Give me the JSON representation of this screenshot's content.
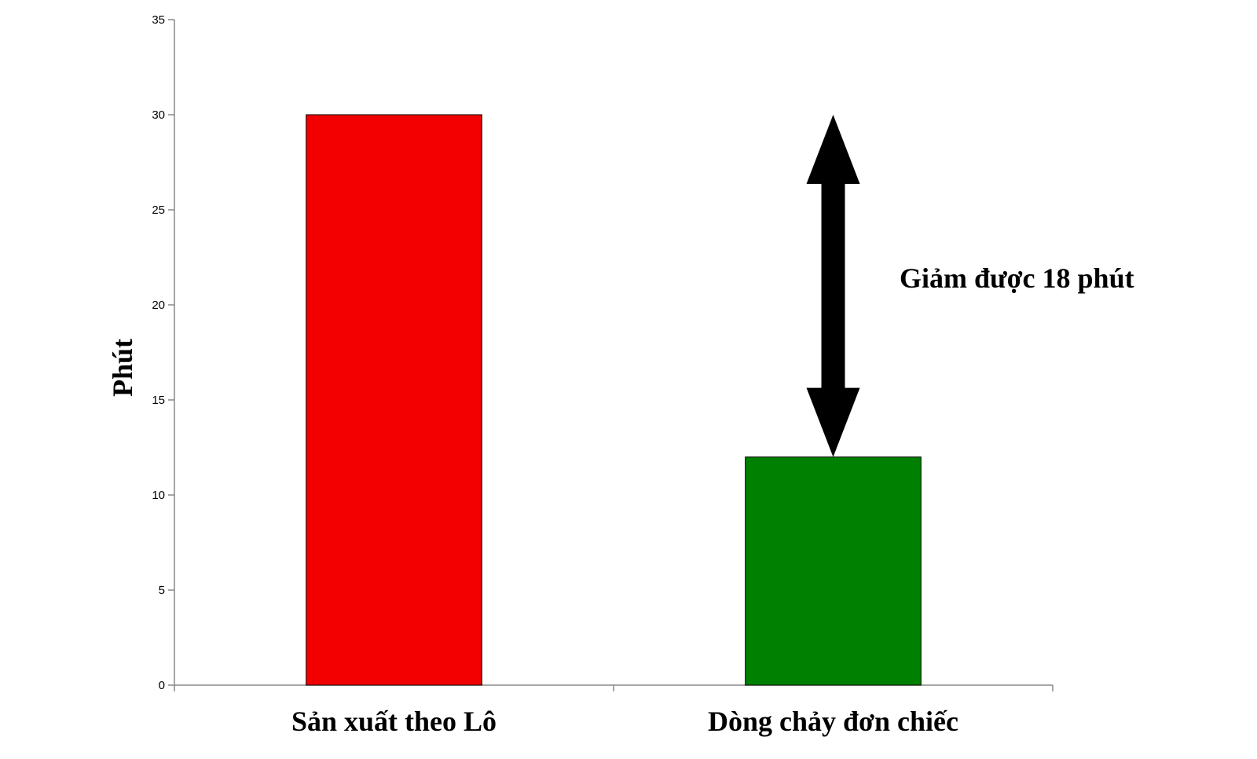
{
  "chart_data": {
    "type": "bar",
    "categories": [
      "Sản xuất theo Lô",
      "Dòng chảy đơn chiếc"
    ],
    "values": [
      30,
      12
    ],
    "colors": [
      "#f20000",
      "#008000"
    ],
    "title": "",
    "xlabel": "",
    "ylabel": "Phút",
    "ylim": [
      0,
      35
    ],
    "yticks": [
      0,
      5,
      10,
      15,
      20,
      25,
      30,
      35
    ],
    "grid": false,
    "legend": "none",
    "annotation": {
      "text": "Giảm được 18 phút",
      "from_value": 30,
      "to_value": 12,
      "category_index": 1,
      "type": "double-arrow"
    }
  }
}
